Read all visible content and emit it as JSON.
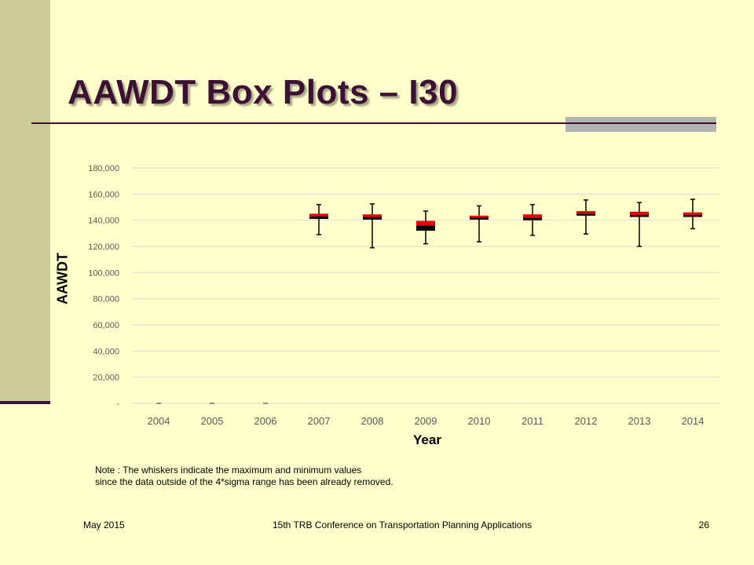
{
  "slide": {
    "title": "AAWDT Box Plots – I30",
    "note_line1": "Note : The whiskers indicate the maximum  and minimum  values",
    "note_line2": "since the data outside of the 4*sigma range has been already removed.",
    "footer_left": "May 2015",
    "footer_center": "15th TRB Conference on Transportation Planning Applications",
    "footer_right": "26"
  },
  "colors": {
    "background": "#ffffcc",
    "sidebar": "#cccc99",
    "title": "#3d1135",
    "box_upper": "#e8000b",
    "box_lower": "#000000",
    "gridline": "#d9d9d9",
    "tick_text": "#595959"
  },
  "chart_data": {
    "type": "box",
    "xlabel": "Year",
    "ylabel": "AAWDT",
    "ylim": [
      0,
      180000
    ],
    "y_tick_labels": [
      "-",
      "20,000",
      "40,000",
      "60,000",
      "80,000",
      "100,000",
      "120,000",
      "140,000",
      "160,000",
      "180,000"
    ],
    "y_tick_values": [
      0,
      20000,
      40000,
      60000,
      80000,
      100000,
      120000,
      140000,
      160000,
      180000
    ],
    "grid": "horizontal",
    "categories": [
      "2004",
      "2005",
      "2006",
      "2007",
      "2008",
      "2009",
      "2010",
      "2011",
      "2012",
      "2013",
      "2014"
    ],
    "boxes": [
      {
        "year": "2004",
        "min": 0,
        "q1": 0,
        "median": 0,
        "q3": 0,
        "max": 0
      },
      {
        "year": "2005",
        "min": 0,
        "q1": 0,
        "median": 0,
        "q3": 0,
        "max": 0
      },
      {
        "year": "2006",
        "min": 0,
        "q1": 0,
        "median": 0,
        "q3": 0,
        "max": 0
      },
      {
        "year": "2007",
        "min": 129000,
        "q1": 141000,
        "median": 143000,
        "q3": 145000,
        "max": 152000
      },
      {
        "year": "2008",
        "min": 119000,
        "q1": 140500,
        "median": 142500,
        "q3": 144500,
        "max": 152500
      },
      {
        "year": "2009",
        "min": 122000,
        "q1": 132000,
        "median": 136000,
        "q3": 139500,
        "max": 147000
      },
      {
        "year": "2010",
        "min": 123500,
        "q1": 140500,
        "median": 142000,
        "q3": 143500,
        "max": 151000
      },
      {
        "year": "2011",
        "min": 128500,
        "q1": 140000,
        "median": 142000,
        "q3": 144500,
        "max": 152000
      },
      {
        "year": "2012",
        "min": 129500,
        "q1": 143500,
        "median": 145000,
        "q3": 147000,
        "max": 155500
      },
      {
        "year": "2013",
        "min": 120000,
        "q1": 142500,
        "median": 144000,
        "q3": 146500,
        "max": 153500
      },
      {
        "year": "2014",
        "min": 133500,
        "q1": 142500,
        "median": 144000,
        "q3": 146000,
        "max": 156000
      }
    ]
  }
}
